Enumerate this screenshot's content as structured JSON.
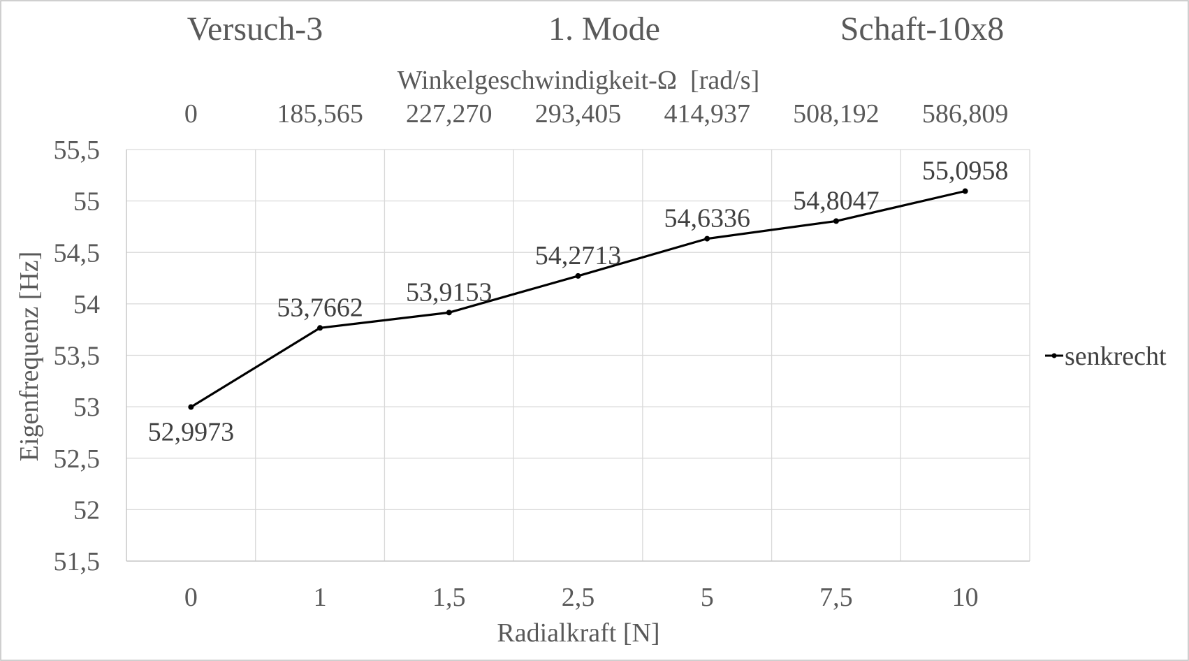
{
  "header": {
    "left": "Versuch-3",
    "center": "1. Mode",
    "right": "Schaft-10x8"
  },
  "chart_data": {
    "type": "line",
    "xlabel": "Radialkraft [N]",
    "ylabel": "Eigenfrequenz [Hz]",
    "categories": [
      "0",
      "1",
      "1,5",
      "2,5",
      "5",
      "7,5",
      "10"
    ],
    "secondary_x": {
      "label": "Winkelgeschwindigkeit-Ω  [rad/s]",
      "ticks": [
        "0",
        "185,565",
        "227,270",
        "293,405",
        "414,937",
        "508,192",
        "586,809"
      ]
    },
    "series": [
      {
        "name": "senkrecht",
        "values": [
          52.9973,
          53.7662,
          53.9153,
          54.2713,
          54.6336,
          54.8047,
          55.0958
        ],
        "labels": [
          "52,9973",
          "53,7662",
          "53,9153",
          "54,2713",
          "54,6336",
          "54,8047",
          "55,0958"
        ],
        "color": "#000000"
      }
    ],
    "ylim": [
      51.5,
      55.5
    ],
    "yticks": [
      51.5,
      52,
      52.5,
      53,
      53.5,
      54,
      54.5,
      55,
      55.5
    ],
    "ytick_labels": [
      "51,5",
      "52",
      "52,5",
      "53",
      "53,5",
      "54",
      "54,5",
      "55",
      "55,5"
    ],
    "grid": true,
    "legend": "right"
  }
}
